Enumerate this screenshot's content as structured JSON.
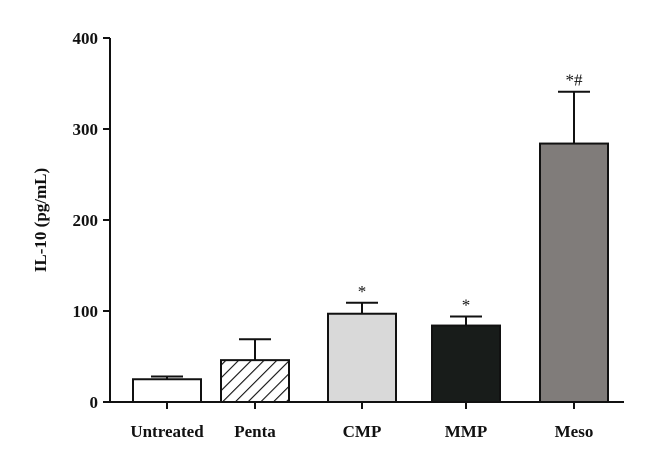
{
  "chart_data": {
    "type": "bar",
    "ylabel": "IL-10 (pg/mL)",
    "xlabel": "",
    "ylim": [
      0,
      400
    ],
    "yticks": [
      0,
      100,
      200,
      300,
      400
    ],
    "categories": [
      "Untreated",
      "Penta",
      "CMP",
      "MMP",
      "Meso"
    ],
    "values": [
      25,
      46,
      97,
      84,
      284
    ],
    "errors": [
      3,
      23,
      12,
      10,
      57
    ],
    "significance": [
      "",
      "",
      "*",
      "*",
      "*#"
    ],
    "fills": [
      "#ffffff",
      "hatch",
      "#d9d9d9",
      "#181c1a",
      "#807c7a"
    ],
    "grid": false,
    "legend": "none"
  }
}
